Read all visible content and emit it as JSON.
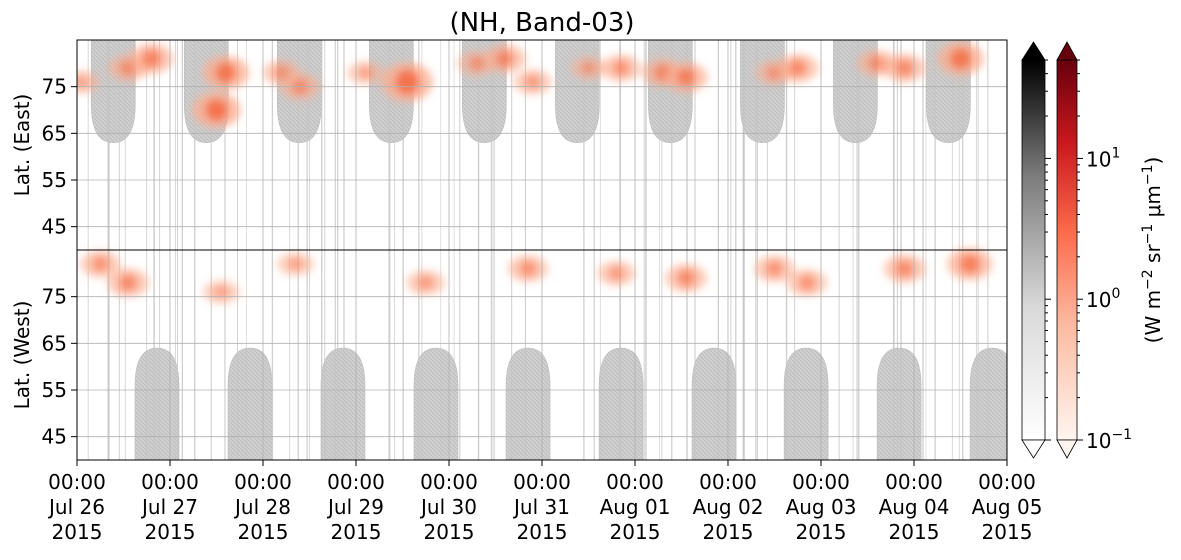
{
  "chart_data": {
    "type": "heatmap",
    "title": "(NH, Band-03)",
    "ylabel_top": "Lat. (East)",
    "ylabel_bottom": "Lat. (West)",
    "yticks_top": [
      "45",
      "55",
      "65",
      "75"
    ],
    "yticks_bottom": [
      "75",
      "65",
      "55",
      "45"
    ],
    "xtick_labels": [
      [
        "00:00",
        "Jul 26",
        "2015"
      ],
      [
        "00:00",
        "Jul 27",
        "2015"
      ],
      [
        "00:00",
        "Jul 28",
        "2015"
      ],
      [
        "00:00",
        "Jul 29",
        "2015"
      ],
      [
        "00:00",
        "Jul 30",
        "2015"
      ],
      [
        "00:00",
        "Jul 31",
        "2015"
      ],
      [
        "00:00",
        "Aug 01",
        "2015"
      ],
      [
        "00:00",
        "Aug 02",
        "2015"
      ],
      [
        "00:00",
        "Aug 03",
        "2015"
      ],
      [
        "00:00",
        "Aug 04",
        "2015"
      ],
      [
        "00:00",
        "Aug 05",
        "2015"
      ]
    ],
    "x_range": [
      "2015-07-26T00:00",
      "2015-08-05T00:00"
    ],
    "y_range_top": [
      40,
      85
    ],
    "y_range_bottom": [
      85,
      40
    ],
    "grid": true,
    "colorscale": "Reds",
    "gray_colorscale": "Greys",
    "colorbar_range": [
      0.1,
      50
    ],
    "colorbar_scale": "log",
    "colorbar_ticks": [
      {
        "base": "10",
        "exp": "1",
        "value": 10
      },
      {
        "base": "10",
        "exp": "0",
        "value": 1
      },
      {
        "base": "10",
        "exp": "−1",
        "value": 0.1
      }
    ],
    "colorbar_label": {
      "a": "(W m",
      "b": "−2",
      "c": " sr",
      "d": "−1",
      "e": " μm",
      "f": "−1",
      "g": ")"
    },
    "night_bands": [
      {
        "hemisphere": "east",
        "center_day": 0.39,
        "max_lat": 63
      },
      {
        "hemisphere": "east",
        "center_day": 1.39,
        "max_lat": 63
      },
      {
        "hemisphere": "east",
        "center_day": 2.39,
        "max_lat": 63
      },
      {
        "hemisphere": "east",
        "center_day": 3.38,
        "max_lat": 63
      },
      {
        "hemisphere": "east",
        "center_day": 4.38,
        "max_lat": 63
      },
      {
        "hemisphere": "east",
        "center_day": 5.38,
        "max_lat": 63
      },
      {
        "hemisphere": "east",
        "center_day": 6.38,
        "max_lat": 63
      },
      {
        "hemisphere": "east",
        "center_day": 7.37,
        "max_lat": 63
      },
      {
        "hemisphere": "east",
        "center_day": 8.37,
        "max_lat": 63
      },
      {
        "hemisphere": "east",
        "center_day": 9.37,
        "max_lat": 63
      },
      {
        "hemisphere": "west",
        "center_day": 0.86,
        "max_lat": 64
      },
      {
        "hemisphere": "west",
        "center_day": 1.86,
        "max_lat": 64
      },
      {
        "hemisphere": "west",
        "center_day": 2.86,
        "max_lat": 64
      },
      {
        "hemisphere": "west",
        "center_day": 3.86,
        "max_lat": 64
      },
      {
        "hemisphere": "west",
        "center_day": 4.85,
        "max_lat": 64
      },
      {
        "hemisphere": "west",
        "center_day": 5.85,
        "max_lat": 64
      },
      {
        "hemisphere": "west",
        "center_day": 6.85,
        "max_lat": 64
      },
      {
        "hemisphere": "west",
        "center_day": 7.84,
        "max_lat": 64
      },
      {
        "hemisphere": "west",
        "center_day": 8.84,
        "max_lat": 64
      },
      {
        "hemisphere": "west",
        "center_day": 9.84,
        "max_lat": 64
      }
    ],
    "emission_patches": [
      {
        "hemisphere": "east",
        "day": 0.05,
        "lat": 76,
        "intensity": 0.3
      },
      {
        "hemisphere": "east",
        "day": 0.55,
        "lat": 79,
        "intensity": 0.5
      },
      {
        "hemisphere": "east",
        "day": 0.8,
        "lat": 81,
        "intensity": 0.7
      },
      {
        "hemisphere": "east",
        "day": 1.5,
        "lat": 70,
        "intensity": 1.0
      },
      {
        "hemisphere": "east",
        "day": 1.6,
        "lat": 78,
        "intensity": 0.9
      },
      {
        "hemisphere": "east",
        "day": 2.2,
        "lat": 78,
        "intensity": 0.4
      },
      {
        "hemisphere": "east",
        "day": 2.4,
        "lat": 75,
        "intensity": 0.5
      },
      {
        "hemisphere": "east",
        "day": 3.1,
        "lat": 78,
        "intensity": 0.3
      },
      {
        "hemisphere": "east",
        "day": 3.55,
        "lat": 76,
        "intensity": 1.2
      },
      {
        "hemisphere": "east",
        "day": 4.3,
        "lat": 80,
        "intensity": 0.4
      },
      {
        "hemisphere": "east",
        "day": 4.6,
        "lat": 81,
        "intensity": 0.6
      },
      {
        "hemisphere": "east",
        "day": 4.9,
        "lat": 76,
        "intensity": 0.4
      },
      {
        "hemisphere": "east",
        "day": 5.5,
        "lat": 79,
        "intensity": 0.3
      },
      {
        "hemisphere": "east",
        "day": 5.85,
        "lat": 79,
        "intensity": 0.5
      },
      {
        "hemisphere": "east",
        "day": 6.3,
        "lat": 78,
        "intensity": 0.6
      },
      {
        "hemisphere": "east",
        "day": 6.55,
        "lat": 77,
        "intensity": 0.7
      },
      {
        "hemisphere": "east",
        "day": 7.5,
        "lat": 78,
        "intensity": 0.4
      },
      {
        "hemisphere": "east",
        "day": 7.75,
        "lat": 79,
        "intensity": 0.6
      },
      {
        "hemisphere": "east",
        "day": 8.6,
        "lat": 80,
        "intensity": 0.5
      },
      {
        "hemisphere": "east",
        "day": 8.9,
        "lat": 79,
        "intensity": 0.6
      },
      {
        "hemisphere": "east",
        "day": 9.5,
        "lat": 81,
        "intensity": 0.9
      },
      {
        "hemisphere": "west",
        "day": 0.25,
        "lat": 82,
        "intensity": 0.5
      },
      {
        "hemisphere": "west",
        "day": 0.55,
        "lat": 78,
        "intensity": 0.6
      },
      {
        "hemisphere": "west",
        "day": 1.55,
        "lat": 76,
        "intensity": 0.3
      },
      {
        "hemisphere": "west",
        "day": 2.35,
        "lat": 82,
        "intensity": 0.3
      },
      {
        "hemisphere": "west",
        "day": 3.75,
        "lat": 78,
        "intensity": 0.4
      },
      {
        "hemisphere": "west",
        "day": 4.85,
        "lat": 81,
        "intensity": 0.5
      },
      {
        "hemisphere": "west",
        "day": 5.8,
        "lat": 80,
        "intensity": 0.4
      },
      {
        "hemisphere": "west",
        "day": 6.55,
        "lat": 79,
        "intensity": 0.6
      },
      {
        "hemisphere": "west",
        "day": 7.5,
        "lat": 81,
        "intensity": 0.5
      },
      {
        "hemisphere": "west",
        "day": 7.85,
        "lat": 78,
        "intensity": 0.5
      },
      {
        "hemisphere": "west",
        "day": 8.9,
        "lat": 81,
        "intensity": 0.6
      },
      {
        "hemisphere": "west",
        "day": 9.6,
        "lat": 82,
        "intensity": 0.8
      }
    ]
  }
}
